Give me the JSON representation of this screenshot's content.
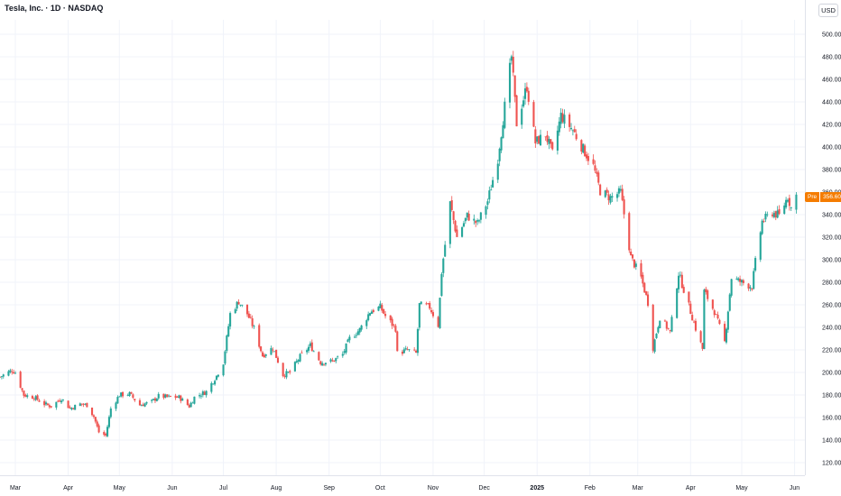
{
  "chart_data": {
    "type": "candlestick",
    "title": "Tesla, Inc. · 1D · NASDAQ",
    "currency": "USD",
    "ylim": [
      110,
      515
    ],
    "y_ticks": [
      "500.00",
      "480.00",
      "460.00",
      "440.00",
      "420.00",
      "400.00",
      "380.00",
      "360.00",
      "340.00",
      "320.00",
      "300.00",
      "280.00",
      "260.00",
      "240.00",
      "220.00",
      "200.00",
      "180.00",
      "160.00",
      "140.00",
      "120.00"
    ],
    "x_ticks": [
      {
        "label": "Mar",
        "date": "2024-03-01"
      },
      {
        "label": "Apr",
        "date": "2024-04-01"
      },
      {
        "label": "May",
        "date": "2024-05-01"
      },
      {
        "label": "Jun",
        "date": "2024-06-01"
      },
      {
        "label": "Jul",
        "date": "2024-07-01"
      },
      {
        "label": "Aug",
        "date": "2024-08-01"
      },
      {
        "label": "Sep",
        "date": "2024-09-01"
      },
      {
        "label": "Oct",
        "date": "2024-10-01"
      },
      {
        "label": "Nov",
        "date": "2024-11-01"
      },
      {
        "label": "Dec",
        "date": "2024-12-01"
      },
      {
        "label": "2025",
        "date": "2025-01-01",
        "bold": true
      },
      {
        "label": "Feb",
        "date": "2025-02-01"
      },
      {
        "label": "Mar",
        "date": "2025-03-01"
      },
      {
        "label": "Apr",
        "date": "2025-04-01"
      },
      {
        "label": "May",
        "date": "2025-05-01"
      },
      {
        "label": "Jun",
        "date": "2025-06-01"
      }
    ],
    "x_range": [
      "2024-02-21",
      "2025-06-06"
    ],
    "up_color": "#26a69a",
    "down_color": "#ef5350",
    "last_price": {
      "label": "Pre",
      "value": "356.60",
      "color": "#f57c00"
    },
    "close_series": [
      [
        "2024-02-21",
        196
      ],
      [
        "2024-02-28",
        202
      ],
      [
        "2024-03-01",
        200
      ],
      [
        "2024-03-06",
        180
      ],
      [
        "2024-03-12",
        178
      ],
      [
        "2024-03-18",
        172
      ],
      [
        "2024-03-22",
        170
      ],
      [
        "2024-03-28",
        177
      ],
      [
        "2024-04-02",
        168
      ],
      [
        "2024-04-08",
        172
      ],
      [
        "2024-04-12",
        171
      ],
      [
        "2024-04-16",
        161
      ],
      [
        "2024-04-19",
        147
      ],
      [
        "2024-04-23",
        144
      ],
      [
        "2024-04-26",
        168
      ],
      [
        "2024-05-01",
        180
      ],
      [
        "2024-05-07",
        181
      ],
      [
        "2024-05-13",
        171
      ],
      [
        "2024-05-20",
        174
      ],
      [
        "2024-05-24",
        179
      ],
      [
        "2024-05-30",
        178
      ],
      [
        "2024-06-05",
        178
      ],
      [
        "2024-06-11",
        170
      ],
      [
        "2024-06-14",
        178
      ],
      [
        "2024-06-21",
        183
      ],
      [
        "2024-06-27",
        197
      ],
      [
        "2024-07-01",
        209
      ],
      [
        "2024-07-05",
        252
      ],
      [
        "2024-07-10",
        263
      ],
      [
        "2024-07-15",
        252
      ],
      [
        "2024-07-19",
        239
      ],
      [
        "2024-07-24",
        215
      ],
      [
        "2024-07-30",
        222
      ],
      [
        "2024-08-05",
        198
      ],
      [
        "2024-08-09",
        200
      ],
      [
        "2024-08-15",
        214
      ],
      [
        "2024-08-21",
        224
      ],
      [
        "2024-08-27",
        209
      ],
      [
        "2024-09-03",
        210
      ],
      [
        "2024-09-09",
        216
      ],
      [
        "2024-09-13",
        230
      ],
      [
        "2024-09-19",
        238
      ],
      [
        "2024-09-25",
        254
      ],
      [
        "2024-10-01",
        258
      ],
      [
        "2024-10-04",
        250
      ],
      [
        "2024-10-10",
        239
      ],
      [
        "2024-10-11",
        217
      ],
      [
        "2024-10-17",
        220
      ],
      [
        "2024-10-22",
        217
      ],
      [
        "2024-10-24",
        260
      ],
      [
        "2024-10-30",
        258
      ],
      [
        "2024-11-04",
        242
      ],
      [
        "2024-11-06",
        289
      ],
      [
        "2024-11-11",
        350
      ],
      [
        "2024-11-15",
        320
      ],
      [
        "2024-11-21",
        339
      ],
      [
        "2024-11-27",
        332
      ],
      [
        "2024-12-03",
        352
      ],
      [
        "2024-12-09",
        390
      ],
      [
        "2024-12-13",
        436
      ],
      [
        "2024-12-17",
        480
      ],
      [
        "2024-12-20",
        421
      ],
      [
        "2024-12-26",
        454
      ],
      [
        "2024-12-31",
        404
      ],
      [
        "2025-01-06",
        411
      ],
      [
        "2025-01-10",
        394
      ],
      [
        "2025-01-15",
        428
      ],
      [
        "2025-01-22",
        415
      ],
      [
        "2025-01-28",
        398
      ],
      [
        "2025-02-03",
        383
      ],
      [
        "2025-02-07",
        361
      ],
      [
        "2025-02-13",
        355
      ],
      [
        "2025-02-19",
        360
      ],
      [
        "2025-02-25",
        302
      ],
      [
        "2025-03-03",
        284
      ],
      [
        "2025-03-07",
        262
      ],
      [
        "2025-03-10",
        222
      ],
      [
        "2025-03-14",
        249
      ],
      [
        "2025-03-20",
        236
      ],
      [
        "2025-03-25",
        288
      ],
      [
        "2025-03-31",
        259
      ],
      [
        "2025-04-04",
        239
      ],
      [
        "2025-04-08",
        221
      ],
      [
        "2025-04-09",
        272
      ],
      [
        "2025-04-15",
        254
      ],
      [
        "2025-04-21",
        227
      ],
      [
        "2025-04-25",
        284
      ],
      [
        "2025-05-01",
        280
      ],
      [
        "2025-05-07",
        276
      ],
      [
        "2025-05-09",
        298
      ],
      [
        "2025-05-13",
        334
      ],
      [
        "2025-05-19",
        342
      ],
      [
        "2025-05-23",
        339
      ],
      [
        "2025-05-28",
        356
      ],
      [
        "2025-05-30",
        346
      ],
      [
        "2025-06-02",
        357
      ]
    ]
  }
}
